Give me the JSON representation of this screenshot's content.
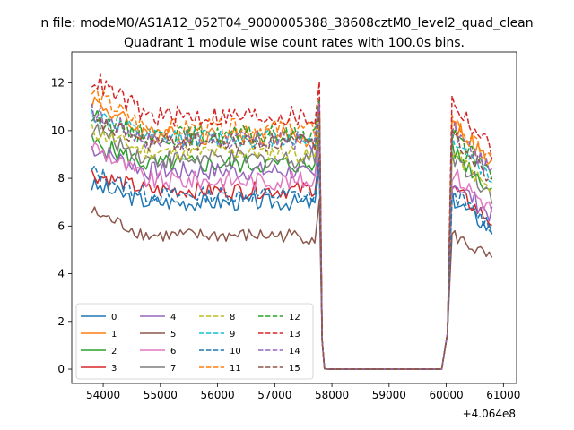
{
  "figure": {
    "suptitle": "n file: modeM0/AS1A12_052T04_9000005388_38608cztM0_level2_quad_clean",
    "title": "Quadrant 1 module wise count rates with 100.0s bins.",
    "x_offset_label": "+4.064e8"
  },
  "chart_data": {
    "type": "line",
    "title": "Quadrant 1 module wise count rates with 100.0s bins.",
    "xlabel": "",
    "ylabel": "",
    "x_offset": 406400000,
    "xlim": [
      53450,
      61230
    ],
    "ylim": [
      -0.6,
      13.3
    ],
    "xticks": [
      54000,
      55000,
      56000,
      57000,
      58000,
      59000,
      60000,
      61000
    ],
    "xtick_labels": [
      "54000",
      "55000",
      "56000",
      "57000",
      "58000",
      "59000",
      "60000",
      "61000"
    ],
    "yticks": [
      0,
      2,
      4,
      6,
      8,
      10,
      12
    ],
    "ytick_labels": [
      "0",
      "2",
      "4",
      "6",
      "8",
      "10",
      "12"
    ],
    "legend": {
      "position": "lower-left",
      "columns": 4
    },
    "x_active_1": [
      53800,
      58000
    ],
    "gap_end": 59950,
    "x_active_2": [
      60050,
      60800
    ],
    "series": [
      {
        "name": "0",
        "color": "#1f77b4",
        "dash": "solid",
        "level": 7.0,
        "early": 7.7,
        "late": 6.9,
        "amp": 0.35,
        "post": 6.6
      },
      {
        "name": "1",
        "color": "#ff7f0e",
        "dash": "solid",
        "level": 9.8,
        "early": 11.3,
        "late": 9.5,
        "amp": 0.4,
        "post": 9.6
      },
      {
        "name": "2",
        "color": "#2ca02c",
        "dash": "solid",
        "level": 8.6,
        "early": 9.5,
        "late": 8.5,
        "amp": 0.4,
        "post": 8.5
      },
      {
        "name": "3",
        "color": "#d62728",
        "dash": "solid",
        "level": 7.5,
        "early": 8.2,
        "late": 7.6,
        "amp": 0.35,
        "post": 7.0
      },
      {
        "name": "4",
        "color": "#9467bd",
        "dash": "solid",
        "level": 8.3,
        "early": 9.3,
        "late": 8.0,
        "amp": 0.4,
        "post": 7.3
      },
      {
        "name": "5",
        "color": "#8c564b",
        "dash": "solid",
        "level": 5.6,
        "early": 6.6,
        "late": 5.5,
        "amp": 0.3,
        "post": 5.2
      },
      {
        "name": "6",
        "color": "#e377c2",
        "dash": "solid",
        "level": 7.9,
        "early": 9.4,
        "late": 7.9,
        "amp": 0.4,
        "post": 7.6
      },
      {
        "name": "7",
        "color": "#7f7f7f",
        "dash": "solid",
        "level": 8.8,
        "early": 10.1,
        "late": 8.9,
        "amp": 0.4,
        "post": 8.3
      },
      {
        "name": "8",
        "color": "#bcbd22",
        "dash": "dashed",
        "level": 9.1,
        "early": 10.0,
        "late": 8.8,
        "amp": 0.35,
        "post": 8.4
      },
      {
        "name": "9",
        "color": "#17becf",
        "dash": "dashed",
        "level": 9.7,
        "early": 10.7,
        "late": 9.6,
        "amp": 0.4,
        "post": 9.0
      },
      {
        "name": "10",
        "color": "#1f77b4",
        "dash": "dashed",
        "level": 7.3,
        "early": 8.3,
        "late": 7.2,
        "amp": 0.35,
        "post": 6.8
      },
      {
        "name": "11",
        "color": "#ff7f0e",
        "dash": "dashed",
        "level": 10.1,
        "early": 11.6,
        "late": 10.0,
        "amp": 0.4,
        "post": 9.7
      },
      {
        "name": "12",
        "color": "#2ca02c",
        "dash": "dashed",
        "level": 9.8,
        "early": 10.6,
        "late": 9.9,
        "amp": 0.4,
        "post": 9.1
      },
      {
        "name": "13",
        "color": "#d62728",
        "dash": "dashed",
        "level": 10.6,
        "early": 12.2,
        "late": 10.5,
        "amp": 0.45,
        "post": 10.4
      },
      {
        "name": "14",
        "color": "#9467bd",
        "dash": "dashed",
        "level": 9.6,
        "early": 10.8,
        "late": 9.5,
        "amp": 0.4,
        "post": 9.3
      },
      {
        "name": "15",
        "color": "#8c564b",
        "dash": "dashed",
        "level": 9.5,
        "early": 10.4,
        "late": 9.4,
        "amp": 0.4,
        "post": 9.1
      }
    ]
  }
}
